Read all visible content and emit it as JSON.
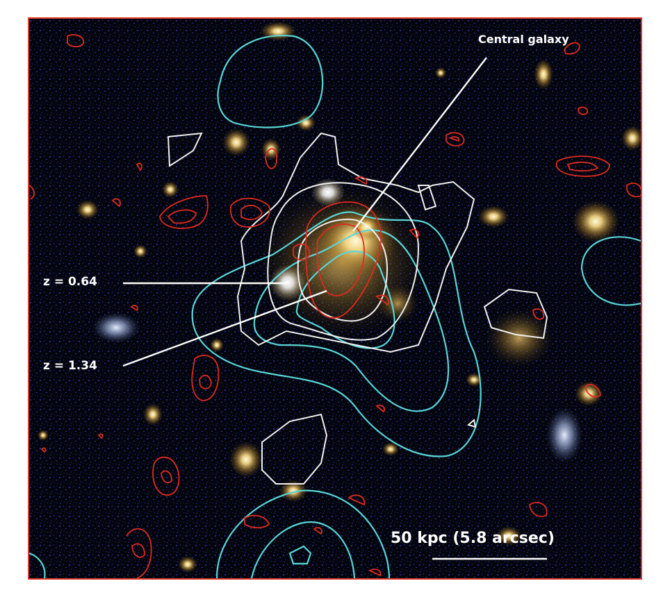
{
  "annotations": {
    "central_galaxy": "Central galaxy",
    "z_low": "z = 0.64",
    "z_high": "z = 1.34",
    "scale_bar": "50 kpc (5.8 arcsec)"
  },
  "colors": {
    "frame": "#e03a2a",
    "background": "#05060d",
    "noise": "#1b2a8a",
    "contour_red": "#e02a1f",
    "contour_cyan": "#59d6d6",
    "contour_white": "#f2f2f2",
    "galaxy_core": "#fff4c8",
    "galaxy_halo": "#c99a3c",
    "blue_galaxy": "#b8c8e8",
    "annotation": "#ffffff"
  },
  "icons": [
    "galaxy-field-image"
  ]
}
